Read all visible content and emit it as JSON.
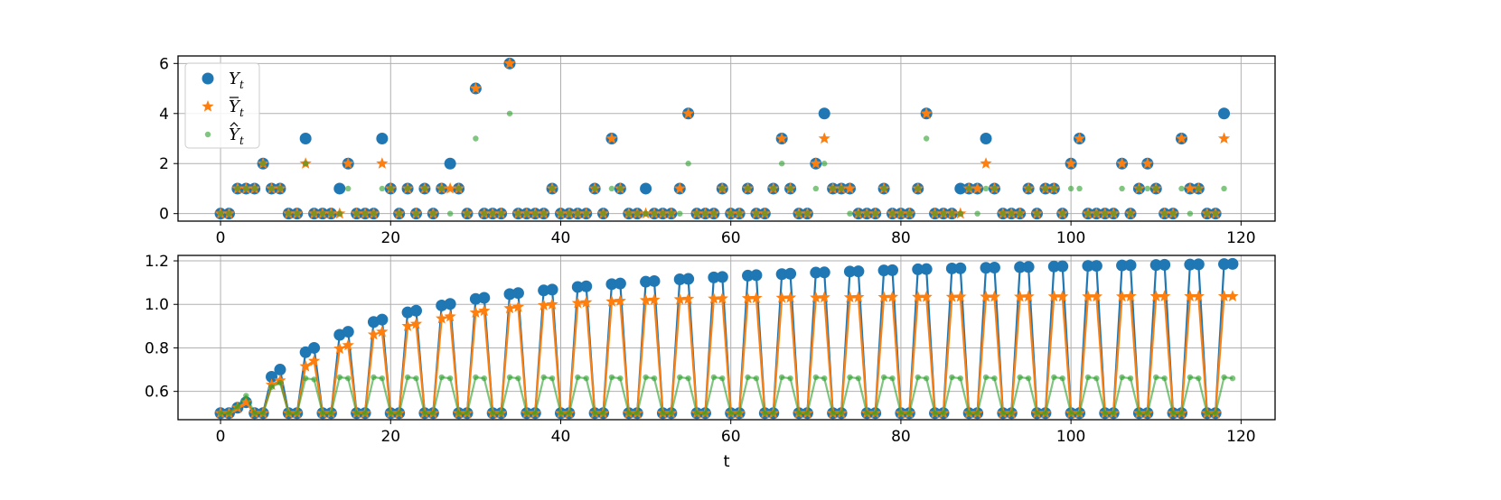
{
  "chart_data": [
    {
      "type": "scatter",
      "xlim": [
        -5,
        124
      ],
      "ylim": [
        -0.3,
        6.3
      ],
      "xticks": [
        0,
        20,
        40,
        60,
        80,
        100,
        120
      ],
      "yticks": [
        0,
        2,
        4,
        6
      ],
      "xtick_labels": [
        "0",
        "20",
        "40",
        "60",
        "80",
        "100",
        "120"
      ],
      "ytick_labels": [
        "0",
        "2",
        "4",
        "6"
      ],
      "xlabel": "",
      "grid": true,
      "legend": {
        "placement": "upper-left",
        "entries": [
          {
            "base": "Y",
            "accent": "",
            "sub": "t",
            "series": "Y"
          },
          {
            "base": "Y",
            "accent": "bar",
            "sub": "t",
            "series": "Ybar"
          },
          {
            "base": "Y",
            "accent": "hat",
            "sub": "t",
            "series": "Yhat"
          }
        ]
      },
      "x_start": 0,
      "series": [
        {
          "key": "Y",
          "color": "#1f77b4",
          "marker": "circle",
          "values": [
            0,
            0,
            1,
            1,
            1,
            2,
            1,
            1,
            0,
            0,
            3,
            0,
            0,
            0,
            1,
            2,
            0,
            0,
            0,
            3,
            1,
            0,
            1,
            0,
            1,
            0,
            1,
            2,
            1,
            0,
            5,
            0,
            0,
            0,
            6,
            0,
            0,
            0,
            0,
            1,
            0,
            0,
            0,
            0,
            1,
            0,
            3,
            1,
            0,
            0,
            1,
            0,
            0,
            0,
            1,
            4,
            0,
            0,
            0,
            1,
            0,
            0,
            1,
            0,
            0,
            1,
            3,
            1,
            0,
            0,
            2,
            4,
            1,
            1,
            1,
            0,
            0,
            0,
            1,
            0,
            0,
            0,
            1,
            4,
            0,
            0,
            0,
            1,
            1,
            1,
            3,
            1,
            0,
            0,
            0,
            1,
            0,
            1,
            1,
            0,
            2,
            3,
            0,
            0,
            0,
            0,
            2,
            0,
            1,
            2,
            1,
            0,
            0,
            3,
            1,
            1,
            0,
            0,
            4
          ]
        },
        {
          "key": "Ybar",
          "color": "#ff7f0e",
          "marker": "star",
          "values": [
            0,
            0,
            1,
            1,
            1,
            2,
            1,
            1,
            0,
            0,
            2,
            0,
            0,
            0,
            0,
            2,
            0,
            0,
            0,
            2,
            1,
            0,
            1,
            0,
            1,
            0,
            1,
            1,
            1,
            0,
            5,
            0,
            0,
            0,
            6,
            0,
            0,
            0,
            0,
            1,
            0,
            0,
            0,
            0,
            1,
            0,
            3,
            1,
            0,
            0,
            0,
            0,
            0,
            0,
            1,
            4,
            0,
            0,
            0,
            1,
            0,
            0,
            1,
            0,
            0,
            1,
            3,
            1,
            0,
            0,
            2,
            3,
            1,
            1,
            1,
            0,
            0,
            0,
            1,
            0,
            0,
            0,
            1,
            4,
            0,
            0,
            0,
            0,
            1,
            1,
            2,
            1,
            0,
            0,
            0,
            1,
            0,
            1,
            1,
            0,
            2,
            3,
            0,
            0,
            0,
            0,
            2,
            0,
            1,
            2,
            1,
            0,
            0,
            3,
            1,
            1,
            0,
            0,
            3
          ]
        },
        {
          "key": "Yhat",
          "color": "#2ca02c",
          "marker": "dot",
          "values": [
            0,
            0,
            1,
            1,
            1,
            2,
            1,
            1,
            0,
            0,
            2,
            0,
            0,
            0,
            0,
            1,
            0,
            0,
            0,
            1,
            1,
            0,
            1,
            0,
            1,
            0,
            1,
            0,
            1,
            0,
            3,
            0,
            0,
            0,
            4,
            0,
            0,
            0,
            0,
            1,
            0,
            0,
            0,
            0,
            1,
            0,
            1,
            1,
            0,
            0,
            0,
            0,
            0,
            0,
            0,
            2,
            0,
            0,
            0,
            1,
            0,
            0,
            1,
            0,
            0,
            1,
            2,
            1,
            0,
            0,
            1,
            2,
            1,
            1,
            0,
            0,
            0,
            0,
            1,
            0,
            0,
            0,
            1,
            3,
            0,
            0,
            0,
            0,
            1,
            0,
            1,
            1,
            0,
            0,
            0,
            1,
            0,
            1,
            1,
            0,
            1,
            1,
            0,
            0,
            0,
            0,
            1,
            0,
            1,
            1,
            1,
            0,
            0,
            1,
            0,
            1,
            0,
            0,
            1
          ]
        }
      ]
    },
    {
      "type": "line",
      "xlim": [
        -5,
        124
      ],
      "ylim": [
        0.47,
        1.225
      ],
      "xticks": [
        0,
        20,
        40,
        60,
        80,
        100,
        120
      ],
      "yticks": [
        0.6,
        0.8,
        1.0,
        1.2
      ],
      "xtick_labels": [
        "0",
        "20",
        "40",
        "60",
        "80",
        "100",
        "120"
      ],
      "ytick_labels": [
        "0.6",
        "0.8",
        "1.0",
        "1.2"
      ],
      "xlabel": "t",
      "grid": true,
      "x_start": 0,
      "series": [
        {
          "key": "Y",
          "color": "#1f77b4",
          "marker": "circle",
          "values": [
            0.5,
            0.5,
            0.525,
            0.55,
            0.5,
            0.5,
            0.667,
            0.7,
            0.5,
            0.5,
            0.78,
            0.8,
            0.5,
            0.5,
            0.86,
            0.874,
            0.5,
            0.5,
            0.919,
            0.93,
            0.5,
            0.5,
            0.963,
            0.971,
            0.5,
            0.5,
            0.995,
            1.002,
            0.5,
            0.5,
            1.025,
            1.03,
            0.5,
            0.5,
            1.047,
            1.052,
            0.5,
            0.5,
            1.064,
            1.068,
            0.5,
            0.5,
            1.08,
            1.083,
            0.5,
            0.5,
            1.093,
            1.096,
            0.5,
            0.5,
            1.104,
            1.107,
            0.5,
            0.5,
            1.115,
            1.117,
            0.5,
            0.5,
            1.124,
            1.126,
            0.5,
            0.5,
            1.132,
            1.134,
            0.5,
            0.5,
            1.139,
            1.141,
            0.5,
            0.5,
            1.146,
            1.147,
            0.5,
            0.5,
            1.151,
            1.152,
            0.5,
            0.5,
            1.156,
            1.157,
            0.5,
            0.5,
            1.161,
            1.162,
            0.5,
            0.5,
            1.165,
            1.166,
            0.5,
            0.5,
            1.168,
            1.169,
            0.5,
            0.5,
            1.171,
            1.172,
            0.5,
            0.5,
            1.174,
            1.175,
            0.5,
            0.5,
            1.177,
            1.177,
            0.5,
            0.5,
            1.179,
            1.18,
            0.5,
            0.5,
            1.181,
            1.182,
            0.5,
            0.5,
            1.183,
            1.184,
            0.5,
            0.5,
            1.185,
            1.186
          ]
        },
        {
          "key": "Ybar",
          "color": "#ff7f0e",
          "marker": "star",
          "values": [
            0.5,
            0.5,
            0.525,
            0.55,
            0.5,
            0.5,
            0.63,
            0.65,
            0.5,
            0.5,
            0.715,
            0.74,
            0.5,
            0.5,
            0.796,
            0.812,
            0.5,
            0.5,
            0.861,
            0.874,
            0.5,
            0.5,
            0.9,
            0.91,
            0.5,
            0.5,
            0.935,
            0.944,
            0.5,
            0.5,
            0.962,
            0.97,
            0.5,
            0.5,
            0.982,
            0.988,
            0.5,
            0.5,
            0.996,
            1.0,
            0.5,
            0.5,
            1.006,
            1.009,
            0.5,
            0.5,
            1.013,
            1.016,
            0.5,
            0.5,
            1.019,
            1.021,
            0.5,
            0.5,
            1.023,
            1.025,
            0.5,
            0.5,
            1.026,
            1.027,
            0.5,
            0.5,
            1.028,
            1.029,
            0.5,
            0.5,
            1.03,
            1.031,
            0.5,
            0.5,
            1.031,
            1.032,
            0.5,
            0.5,
            1.032,
            1.033,
            0.5,
            0.5,
            1.033,
            1.034,
            0.5,
            0.5,
            1.034,
            1.034,
            0.5,
            0.5,
            1.034,
            1.035,
            0.5,
            0.5,
            1.035,
            1.035,
            0.5,
            0.5,
            1.035,
            1.036,
            0.5,
            0.5,
            1.036,
            1.036,
            0.5,
            0.5,
            1.036,
            1.036,
            0.5,
            0.5,
            1.036,
            1.037,
            0.5,
            0.5,
            1.037,
            1.037,
            0.5,
            0.5,
            1.037,
            1.037,
            0.5,
            0.5,
            1.037,
            1.037
          ]
        },
        {
          "key": "Yhat",
          "color": "#2ca02c",
          "marker": "dot",
          "values": [
            0.5,
            0.5,
            0.53,
            0.58,
            0.5,
            0.5,
            0.62,
            0.64,
            0.5,
            0.5,
            0.66,
            0.655,
            0.5,
            0.5,
            0.665,
            0.66,
            0.5,
            0.5,
            0.665,
            0.66,
            0.5,
            0.5,
            0.665,
            0.66,
            0.5,
            0.5,
            0.665,
            0.66,
            0.5,
            0.5,
            0.665,
            0.66,
            0.5,
            0.5,
            0.665,
            0.66,
            0.5,
            0.5,
            0.665,
            0.66,
            0.5,
            0.5,
            0.665,
            0.66,
            0.5,
            0.5,
            0.665,
            0.66,
            0.5,
            0.5,
            0.665,
            0.66,
            0.5,
            0.5,
            0.665,
            0.66,
            0.5,
            0.5,
            0.665,
            0.66,
            0.5,
            0.5,
            0.665,
            0.66,
            0.5,
            0.5,
            0.665,
            0.66,
            0.5,
            0.5,
            0.665,
            0.66,
            0.5,
            0.5,
            0.665,
            0.66,
            0.5,
            0.5,
            0.665,
            0.66,
            0.5,
            0.5,
            0.665,
            0.66,
            0.5,
            0.5,
            0.665,
            0.66,
            0.5,
            0.5,
            0.665,
            0.66,
            0.5,
            0.5,
            0.665,
            0.66,
            0.5,
            0.5,
            0.665,
            0.66,
            0.5,
            0.5,
            0.665,
            0.66,
            0.5,
            0.5,
            0.665,
            0.66,
            0.5,
            0.5,
            0.665,
            0.66,
            0.5,
            0.5,
            0.665,
            0.66,
            0.5,
            0.5,
            0.665,
            0.66
          ]
        }
      ]
    }
  ]
}
